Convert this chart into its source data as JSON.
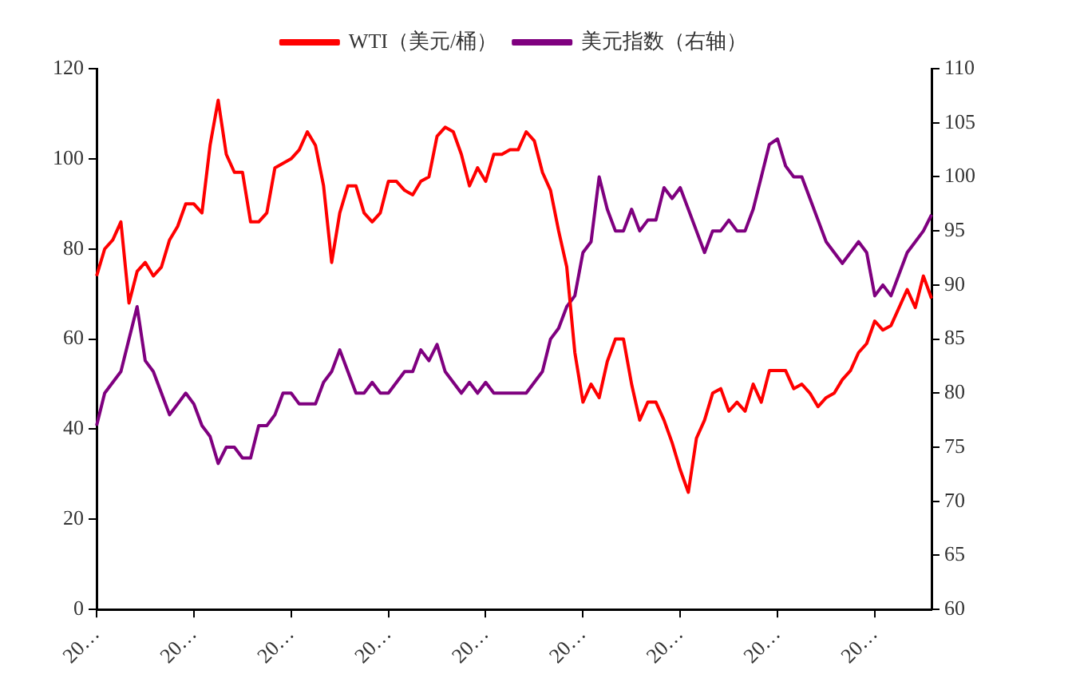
{
  "chart_data": {
    "type": "line",
    "legend": "top",
    "grid": false,
    "marker": "none",
    "line_style": "solid",
    "categories": [
      "20…",
      null,
      null,
      null,
      null,
      null,
      null,
      null,
      null,
      null,
      null,
      null,
      "20…",
      null,
      null,
      null,
      null,
      null,
      null,
      null,
      null,
      null,
      null,
      null,
      "20…",
      null,
      null,
      null,
      null,
      null,
      null,
      null,
      null,
      null,
      null,
      null,
      "20…",
      null,
      null,
      null,
      null,
      null,
      null,
      null,
      null,
      null,
      null,
      null,
      "20…",
      null,
      null,
      null,
      null,
      null,
      null,
      null,
      null,
      null,
      null,
      null,
      "20…",
      null,
      null,
      null,
      null,
      null,
      null,
      null,
      null,
      null,
      null,
      null,
      "20…",
      null,
      null,
      null,
      null,
      null,
      null,
      null,
      null,
      null,
      null,
      null,
      "20…",
      null,
      null,
      null,
      null,
      null,
      null,
      null,
      null,
      null,
      null,
      null,
      "20…",
      null,
      null,
      null,
      null,
      null,
      null,
      null
    ],
    "ylim": [
      0,
      120
    ],
    "yticks": [
      0,
      20,
      40,
      60,
      80,
      100,
      120
    ],
    "y2lim": [
      60,
      110
    ],
    "y2ticks": [
      60,
      65,
      70,
      75,
      80,
      85,
      90,
      95,
      100,
      105,
      110
    ],
    "series": [
      {
        "name": "WTI（美元/桶）",
        "color": "#ff0000",
        "values": [
          74,
          80,
          82,
          86,
          68,
          75,
          77,
          74,
          76,
          82,
          85,
          90,
          90,
          88,
          103,
          113,
          101,
          97,
          97,
          86,
          86,
          88,
          98,
          99,
          100,
          102,
          106,
          103,
          94,
          77,
          88,
          94,
          94,
          88,
          86,
          88,
          95,
          95,
          93,
          92,
          95,
          96,
          105,
          107,
          106,
          101,
          94,
          98,
          95,
          101,
          101,
          102,
          102,
          106,
          104,
          97,
          93,
          84,
          76,
          57,
          46,
          50,
          47,
          55,
          60,
          60,
          50,
          42,
          46,
          46,
          42,
          37,
          31,
          26,
          38,
          42,
          48,
          49,
          44,
          46,
          44,
          50,
          46,
          53,
          53,
          53,
          49,
          50,
          48,
          45,
          47,
          48,
          51,
          53,
          57,
          59,
          64,
          62,
          63,
          67,
          71,
          67,
          74,
          69
        ]
      },
      {
        "name": "美元指数（右轴）",
        "color": "#7f007f",
        "axis": "y2",
        "values": [
          77,
          80,
          81,
          82,
          85,
          88,
          83,
          82,
          80,
          78,
          79,
          80,
          79,
          77,
          76,
          73.5,
          75,
          75,
          74,
          74,
          77,
          77,
          78,
          80,
          80,
          79,
          79,
          79,
          81,
          82,
          84,
          82,
          80,
          80,
          81,
          80,
          80,
          81,
          82,
          82,
          84,
          83,
          84.5,
          82,
          81,
          80,
          81,
          80,
          81,
          80,
          80,
          80,
          80,
          80,
          81,
          82,
          85,
          86,
          88,
          89,
          93,
          94,
          100,
          97,
          95,
          95,
          97,
          95,
          96,
          96,
          99,
          98,
          99,
          97,
          95,
          93,
          95,
          95,
          96,
          95,
          95,
          97,
          100,
          103,
          103.5,
          101,
          100,
          100,
          98,
          96,
          94,
          93,
          92,
          93,
          94,
          93,
          89,
          90,
          89,
          91,
          93,
          94,
          95,
          96.5
        ]
      }
    ]
  }
}
